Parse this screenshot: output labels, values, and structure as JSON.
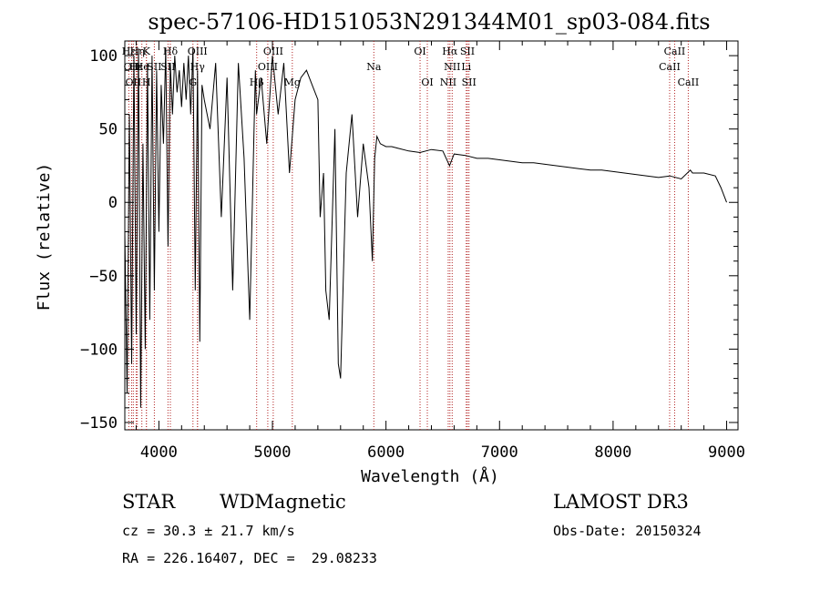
{
  "chart_data": {
    "type": "line",
    "title": "spec-57106-HD151053N291344M01_sp03-084.fits",
    "xlabel": "Wavelength (Å)",
    "ylabel": "Flux (relative)",
    "xlim": [
      3700,
      9100
    ],
    "ylim": [
      -155,
      110
    ],
    "x_ticks": [
      4000,
      5000,
      6000,
      7000,
      8000,
      9000
    ],
    "y_ticks": [
      -150,
      -100,
      -50,
      0,
      50,
      100
    ],
    "x_tick_labels": [
      "4000",
      "5000",
      "6000",
      "7000",
      "8000",
      "9000"
    ],
    "y_tick_labels": [
      "−150",
      "−100",
      "−50",
      "0",
      "50",
      "100"
    ],
    "series": [
      {
        "x": [
          3700,
          3720,
          3740,
          3760,
          3780,
          3800,
          3820,
          3840,
          3860,
          3880,
          3900,
          3920,
          3940,
          3960,
          3980,
          4000,
          4020,
          4040,
          4060,
          4080,
          4100,
          4120,
          4140,
          4160,
          4180,
          4200,
          4220,
          4240,
          4260,
          4280,
          4300,
          4320,
          4340,
          4360,
          4380,
          4400,
          4450,
          4500,
          4550,
          4600,
          4650,
          4700,
          4750,
          4800,
          4850,
          4860,
          4900,
          4950,
          5000,
          5050,
          5100,
          5150,
          5200,
          5250,
          5300,
          5350,
          5400,
          5420,
          5450,
          5470,
          5500,
          5550,
          5580,
          5600,
          5650,
          5700,
          5750,
          5800,
          5850,
          5880,
          5900,
          5920,
          5950,
          6000,
          6050,
          6100,
          6200,
          6300,
          6400,
          6500,
          6560,
          6600,
          6700,
          6800,
          6900,
          7000,
          7100,
          7200,
          7300,
          7400,
          7500,
          7600,
          7700,
          7800,
          7900,
          8000,
          8100,
          8200,
          8300,
          8400,
          8500,
          8600,
          8680,
          8700,
          8800,
          8900,
          8950,
          9000
        ],
        "y": [
          -20,
          -130,
          60,
          -110,
          100,
          -90,
          105,
          -140,
          40,
          -100,
          95,
          -80,
          100,
          -60,
          90,
          -20,
          80,
          40,
          105,
          -30,
          95,
          60,
          100,
          75,
          90,
          65,
          95,
          70,
          100,
          60,
          105,
          -60,
          90,
          -95,
          80,
          70,
          50,
          95,
          -10,
          85,
          -60,
          95,
          30,
          -80,
          90,
          60,
          85,
          40,
          100,
          60,
          95,
          20,
          70,
          85,
          90,
          80,
          70,
          -10,
          20,
          -60,
          -80,
          50,
          -110,
          -120,
          20,
          60,
          -10,
          40,
          10,
          -40,
          30,
          45,
          40,
          38,
          38,
          37,
          35,
          34,
          36,
          35,
          25,
          33,
          32,
          30,
          30,
          29,
          28,
          27,
          27,
          26,
          25,
          24,
          23,
          22,
          22,
          21,
          20,
          19,
          18,
          17,
          18,
          16,
          22,
          20,
          20,
          18,
          10,
          0
        ]
      }
    ],
    "line_labels": [
      {
        "x": 3735,
        "name": "Hε",
        "row": 1
      },
      {
        "x": 3760,
        "name": "OII",
        "row": 2
      },
      {
        "x": 3775,
        "name": "OII",
        "row": 3
      },
      {
        "x": 3800,
        "name": "Hε",
        "row": 2
      },
      {
        "x": 3810,
        "name": "Hη",
        "row": 1
      },
      {
        "x": 3850,
        "name": "He",
        "row": 2
      },
      {
        "x": 3890,
        "name": "K",
        "row": 1
      },
      {
        "x": 3890,
        "name": "H",
        "row": 3
      },
      {
        "x": 3960,
        "name": "SII",
        "row": 2
      },
      {
        "x": 4101,
        "name": "Hδ",
        "row": 1
      },
      {
        "x": 4080,
        "name": "SII",
        "row": 2
      },
      {
        "x": 4340,
        "name": "OIII",
        "row": 1
      },
      {
        "x": 4340,
        "name": "Hγ",
        "row": 2
      },
      {
        "x": 4300,
        "name": "G",
        "row": 3
      },
      {
        "x": 5007,
        "name": "OIII",
        "row": 1
      },
      {
        "x": 4959,
        "name": "OIII",
        "row": 2
      },
      {
        "x": 4861,
        "name": "Hβ",
        "row": 3
      },
      {
        "x": 5175,
        "name": "Mg",
        "row": 3
      },
      {
        "x": 5893,
        "name": "Na",
        "row": 2
      },
      {
        "x": 6300,
        "name": "OI",
        "row": 1
      },
      {
        "x": 6364,
        "name": "OI",
        "row": 3
      },
      {
        "x": 6563,
        "name": "Hα",
        "row": 1
      },
      {
        "x": 6583,
        "name": "NII",
        "row": 2
      },
      {
        "x": 6548,
        "name": "NII",
        "row": 3
      },
      {
        "x": 6717,
        "name": "SII",
        "row": 1
      },
      {
        "x": 6707,
        "name": "Li",
        "row": 2
      },
      {
        "x": 6731,
        "name": "SII",
        "row": 3
      },
      {
        "x": 8542,
        "name": "CaII",
        "row": 1
      },
      {
        "x": 8498,
        "name": "CaII",
        "row": 2
      },
      {
        "x": 8662,
        "name": "CaII",
        "row": 3
      }
    ],
    "grid": false
  },
  "info": {
    "object_class": "STAR",
    "subclass": "WDMagnetic",
    "survey": "LAMOST DR3",
    "cz": "cz = 30.3 ± 21.7 km/s",
    "obs_date": "Obs-Date: 20150324",
    "coords": "RA = 226.16407, DEC =  29.08233"
  }
}
